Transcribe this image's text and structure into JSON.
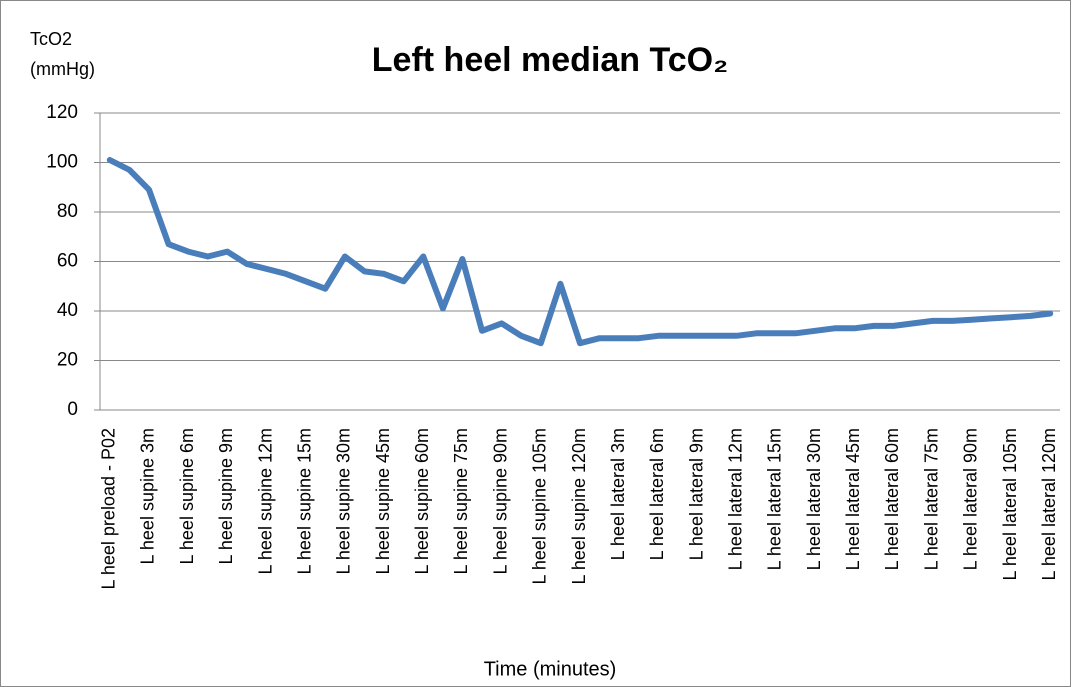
{
  "chart_data": {
    "type": "line",
    "title": "Left heel median TcO₂",
    "y_label": [
      "TcO2",
      "(mmHg)"
    ],
    "x_label": "Time (minutes)",
    "categories": [
      "L heel preload - P02",
      null,
      "L heel supine 3m",
      null,
      "L heel supine 6m",
      null,
      "L heel supine 9m",
      null,
      "L heel supine 12m",
      null,
      "L heel supine 15m",
      null,
      "L heel supine 30m",
      null,
      "L heel supine 45m",
      null,
      "L heel supine 60m",
      null,
      "L heel supine 75m",
      null,
      "L heel supine 90m",
      null,
      "L heel supine 105m",
      null,
      "L heel supine 120m",
      null,
      "L heel lateral 3m",
      null,
      "L heel lateral 6m",
      null,
      "L heel lateral 9m",
      null,
      "L heel lateral 12m",
      null,
      "L heel lateral 15m",
      null,
      "L heel lateral 30m",
      null,
      "L heel lateral 45m",
      null,
      "L heel lateral 60m",
      null,
      "L heel lateral 75m",
      null,
      "L heel lateral 90m",
      null,
      "L heel lateral 105m",
      null,
      "L heel lateral 120m"
    ],
    "values": [
      101,
      97,
      89,
      67,
      64,
      62,
      64,
      59,
      57,
      55,
      52,
      49,
      62,
      56,
      55,
      52,
      62,
      41,
      61,
      32,
      35,
      30,
      27,
      51,
      27,
      29,
      29,
      29,
      30,
      30,
      30,
      30,
      30,
      31,
      31,
      31,
      32,
      33,
      33,
      34,
      34,
      35,
      36,
      36,
      36.5,
      37,
      37.5,
      38,
      39
    ],
    "color": "#4a7ebb",
    "ylim": [
      0,
      120
    ],
    "yticks": [
      0,
      20,
      40,
      60,
      80,
      100,
      120
    ],
    "grid": true
  }
}
